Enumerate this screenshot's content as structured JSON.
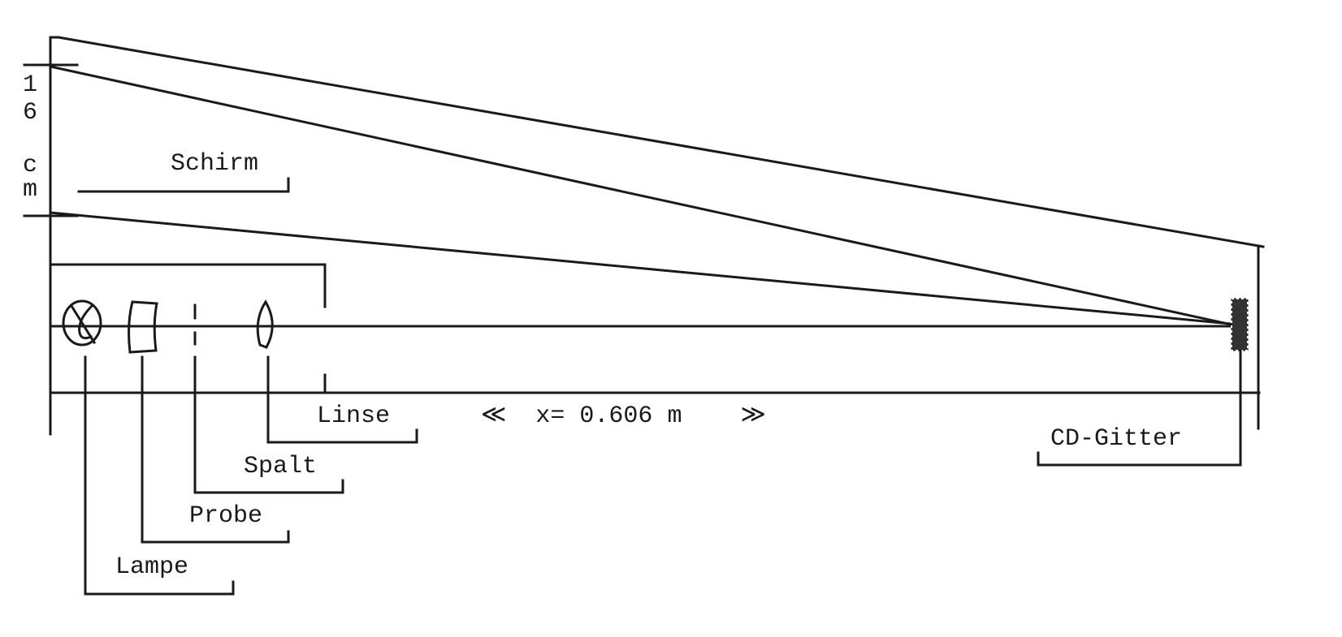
{
  "labels": {
    "screen": "Schirm",
    "screen_size_digit1": "1",
    "screen_size_digit2": "6",
    "screen_size_unit1": "c",
    "screen_size_unit2": "m",
    "lens": "Linse",
    "distance": "≪  x= 0.606 m    ≫",
    "slit": "Spalt",
    "sample": "Probe",
    "lamp": "Lampe",
    "grating": "CD-Gitter"
  },
  "colors": {
    "ink": "#1a1a1a",
    "background": "#ffffff"
  }
}
